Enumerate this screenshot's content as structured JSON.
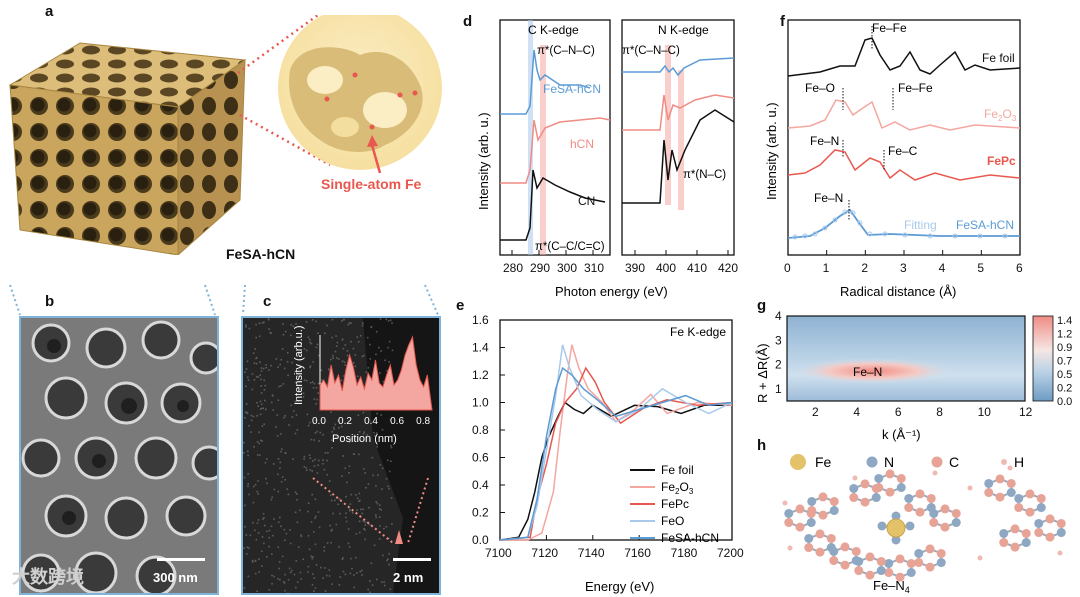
{
  "panels": {
    "a": {
      "label": "a",
      "caption": "FeSA-hCN",
      "callout": "Single-atom Fe"
    },
    "b": {
      "label": "b",
      "scale": "300 nm"
    },
    "c": {
      "label": "c",
      "scale": "2 nm",
      "inset_ylabel": "Intensity (arb.u.)",
      "inset_xlabel": "Position (nm)",
      "inset_ticks": [
        "0.0",
        "0.2",
        "0.4",
        "0.6",
        "0.8"
      ]
    },
    "d": {
      "label": "d"
    },
    "e": {
      "label": "e"
    },
    "f": {
      "label": "f"
    },
    "g": {
      "label": "g"
    },
    "h": {
      "label": "h",
      "caption": "Fe–N",
      "caption_sub": "4",
      "legend": [
        "Fe",
        "N",
        "C",
        "H"
      ]
    }
  },
  "watermark": "大数跨境",
  "chart_data": [
    {
      "type": "line",
      "id": "d",
      "title_left": "C K-edge",
      "title_right": "N K-edge",
      "xlabel": "Photon energy (eV)",
      "ylabel": "Intensity (arb. u.)",
      "xticks_left": [
        "280",
        "290",
        "300",
        "310"
      ],
      "xticks_right": [
        "390",
        "400",
        "410",
        "420"
      ],
      "series": [
        {
          "name": "FeSA-hCN",
          "color": "#5b9bd5"
        },
        {
          "name": "hCN",
          "color": "#f08c84"
        },
        {
          "name": "CN",
          "color": "#111111"
        }
      ],
      "annotations": [
        "π*(C–N–C)",
        "π*(C–N–C)",
        "π*(C–C/C=C)",
        "π*(N–C)"
      ]
    },
    {
      "type": "line",
      "id": "e",
      "title": "Fe K-edge",
      "xlabel": "Energy (eV)",
      "ylabel": "",
      "xlim": [
        7100,
        7200
      ],
      "ylim": [
        0.0,
        1.6
      ],
      "xticks": [
        "7100",
        "7120",
        "7140",
        "7160",
        "7180",
        "7200"
      ],
      "yticks": [
        "0.0",
        "0.2",
        "0.4",
        "0.6",
        "0.8",
        "1.0",
        "1.2",
        "1.4",
        "1.6"
      ],
      "series": [
        {
          "name": "Fe foil",
          "sub": "",
          "color": "#111111"
        },
        {
          "name": "Fe",
          "sub": "2",
          "tail": "O",
          "sub2": "3",
          "color": "#f4a6a0"
        },
        {
          "name": "FePc",
          "sub": "",
          "color": "#e8584f"
        },
        {
          "name": "FeO",
          "sub": "",
          "color": "#a9c9ec"
        },
        {
          "name": "FeSA-hCN",
          "sub": "",
          "color": "#5b9bd5"
        }
      ]
    },
    {
      "type": "line",
      "id": "f",
      "xlabel": "Radical distance (Å)",
      "ylabel": "Intensity (arb. u.)",
      "xlim": [
        0,
        6
      ],
      "xticks": [
        "0",
        "1",
        "2",
        "3",
        "4",
        "5",
        "6"
      ],
      "series": [
        {
          "name": "Fe foil",
          "color": "#111111"
        },
        {
          "name": "Fe2O3",
          "color": "#f4a6a0"
        },
        {
          "name": "FePc",
          "color": "#e8584f"
        },
        {
          "name": "FeSA-hCN",
          "color": "#5b9bd5"
        }
      ],
      "annotations": [
        "Fe–Fe",
        "Fe–O",
        "Fe–Fe",
        "Fe–N",
        "Fe–C",
        "Fe–N",
        "Fitting"
      ],
      "fe2o3_label": {
        "a": "Fe",
        "b": "2",
        "c": "O",
        "d": "3"
      }
    },
    {
      "type": "heatmap",
      "id": "g",
      "xlabel": "k (Å⁻¹)",
      "ylabel": "R + ΔR(Å)",
      "xticks": [
        "2",
        "4",
        "6",
        "8",
        "10",
        "12"
      ],
      "yticks": [
        "1",
        "2",
        "3",
        "4"
      ],
      "colorbar": [
        "1.4",
        "1.2",
        "0.9",
        "0.7",
        "0.5",
        "0.2",
        "0.0"
      ],
      "annotation": "Fe–N"
    }
  ]
}
